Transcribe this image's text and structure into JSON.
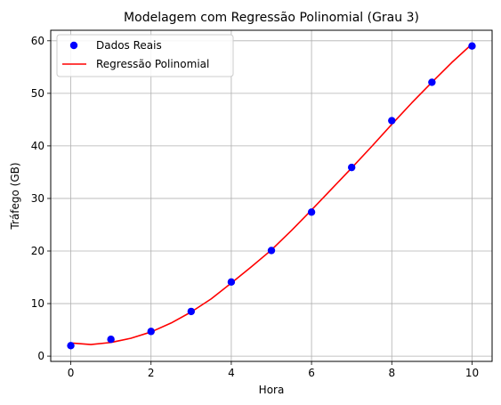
{
  "chart_data": {
    "type": "scatter",
    "title": "Modelagem com Regressão Polinomial (Grau 3)",
    "xlabel": "Hora",
    "ylabel": "Tráfego (GB)",
    "xlim": [
      -0.5,
      10.5
    ],
    "ylim": [
      -1,
      62
    ],
    "xticks": [
      0,
      2,
      4,
      6,
      8,
      10
    ],
    "yticks": [
      0,
      10,
      20,
      30,
      40,
      50,
      60
    ],
    "grid": true,
    "legend_position": "top-left",
    "series": [
      {
        "name": "Dados Reais",
        "kind": "scatter",
        "color": "#0000ff",
        "x": [
          0,
          1,
          2,
          3,
          4,
          5,
          6,
          7,
          8,
          9,
          10
        ],
        "y": [
          2.0,
          3.2,
          4.7,
          8.5,
          14.1,
          20.1,
          27.4,
          35.9,
          44.8,
          52.1,
          59.0
        ]
      },
      {
        "name": "Regressão Polinomial",
        "kind": "line",
        "color": "#ff0000",
        "x": [
          0,
          0.5,
          1,
          1.5,
          2,
          2.5,
          3,
          3.5,
          4,
          4.5,
          5,
          5.5,
          6,
          6.5,
          7,
          7.5,
          8,
          8.5,
          9,
          9.5,
          10
        ],
        "y": [
          2.5,
          2.2,
          2.6,
          3.4,
          4.6,
          6.3,
          8.4,
          10.9,
          13.9,
          17.0,
          20.2,
          23.9,
          27.8,
          31.8,
          35.8,
          39.9,
          44.1,
          48.2,
          52.1,
          55.9,
          59.4
        ]
      }
    ]
  }
}
